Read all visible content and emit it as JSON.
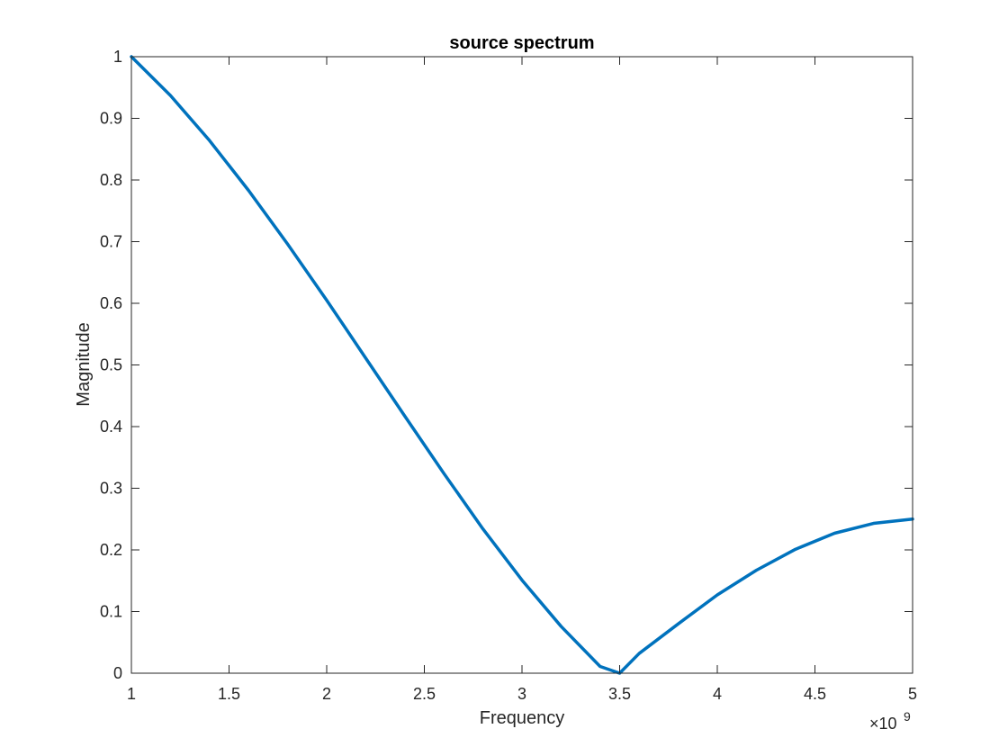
{
  "chart_data": {
    "type": "line",
    "title": "source spectrum",
    "xlabel": "Frequency",
    "ylabel": "Magnitude",
    "x_exponent_base": "×10",
    "x_exponent_power": "9",
    "xlim": [
      1,
      5
    ],
    "ylim": [
      0,
      1
    ],
    "x_ticks": [
      1,
      1.5,
      2,
      2.5,
      3,
      3.5,
      4,
      4.5,
      5
    ],
    "x_tick_labels": [
      "1",
      "1.5",
      "2",
      "2.5",
      "3",
      "3.5",
      "4",
      "4.5",
      "5"
    ],
    "y_ticks": [
      0,
      0.1,
      0.2,
      0.3,
      0.4,
      0.5,
      0.6,
      0.7,
      0.8,
      0.9,
      1
    ],
    "y_tick_labels": [
      "0",
      "0.1",
      "0.2",
      "0.3",
      "0.4",
      "0.5",
      "0.6",
      "0.7",
      "0.8",
      "0.9",
      "1"
    ],
    "grid": false,
    "series": [
      {
        "color": "#0072BD",
        "x": [
          1.0,
          1.2,
          1.4,
          1.6,
          1.8,
          2.0,
          2.2,
          2.4,
          2.6,
          2.8,
          3.0,
          3.2,
          3.4,
          3.5,
          3.6,
          3.8,
          4.0,
          4.2,
          4.4,
          4.6,
          4.8,
          5.0
        ],
        "y": [
          1.0,
          0.937,
          0.864,
          0.783,
          0.696,
          0.605,
          0.511,
          0.417,
          0.324,
          0.234,
          0.151,
          0.076,
          0.011,
          0.0,
          0.032,
          0.08,
          0.127,
          0.167,
          0.201,
          0.227,
          0.243,
          0.25
        ]
      }
    ]
  }
}
